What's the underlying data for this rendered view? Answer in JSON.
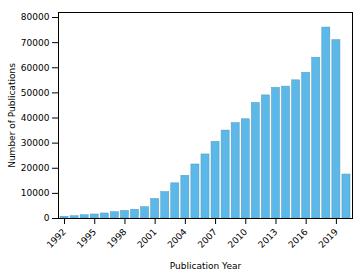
{
  "chart_data": {
    "type": "bar",
    "x": [
      1992,
      1993,
      1994,
      1995,
      1996,
      1997,
      1998,
      1999,
      2000,
      2001,
      2002,
      2003,
      2004,
      2005,
      2006,
      2007,
      2008,
      2009,
      2010,
      2011,
      2012,
      2013,
      2014,
      2015,
      2016,
      2017,
      2018,
      2019,
      2020
    ],
    "values": [
      700,
      900,
      1300,
      1600,
      2000,
      2500,
      3000,
      3500,
      4500,
      7800,
      10500,
      14000,
      17000,
      21500,
      25500,
      30500,
      35000,
      38000,
      39500,
      46000,
      49000,
      52000,
      52500,
      55000,
      58000,
      64000,
      76000,
      71000,
      17500
    ],
    "color": "#5BB8E8",
    "xlabel": "Publication Year",
    "ylabel": "Number of Publications",
    "xlim": [
      1991.4,
      2020.6
    ],
    "ylim": [
      0,
      82000
    ],
    "xticks": [
      1992,
      1995,
      1998,
      2001,
      2004,
      2007,
      2010,
      2013,
      2016,
      2019
    ],
    "yticks": [
      0,
      10000,
      20000,
      30000,
      40000,
      50000,
      60000,
      70000,
      80000
    ],
    "grid": false
  }
}
